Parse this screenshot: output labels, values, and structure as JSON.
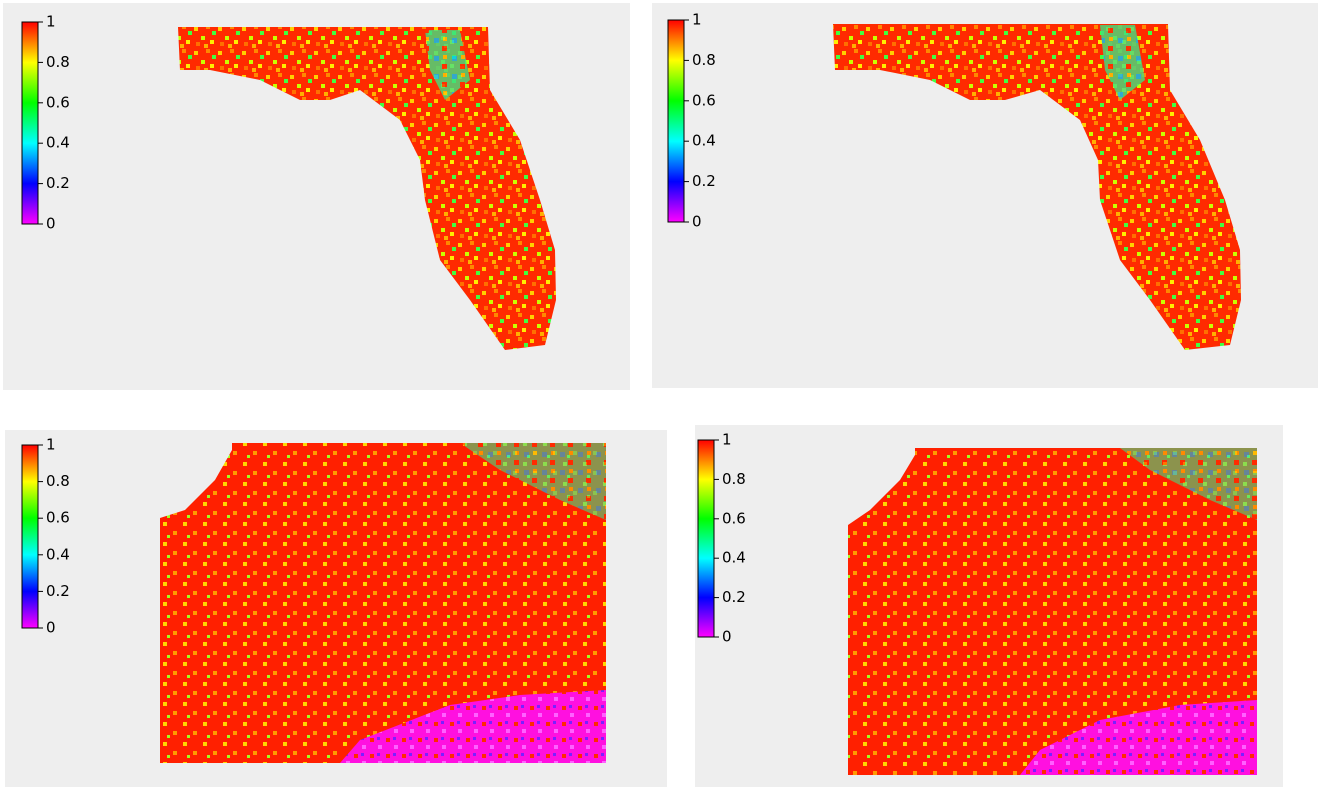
{
  "chart_data": [
    {
      "type": "heatmap",
      "clim": [
        0,
        1
      ],
      "cticks": [
        0,
        0.2,
        0.4,
        0.6,
        0.8,
        1
      ],
      "colormap": [
        "#ff00ff",
        "#0000ff",
        "#00ffff",
        "#00ff00",
        "#ffff00",
        "#ff0000"
      ]
    },
    {
      "type": "heatmap",
      "clim": [
        0,
        1
      ],
      "cticks": [
        0,
        0.2,
        0.4,
        0.6,
        0.8,
        1
      ],
      "colormap": [
        "#ff00ff",
        "#0000ff",
        "#00ffff",
        "#00ff00",
        "#ffff00",
        "#ff0000"
      ]
    },
    {
      "type": "heatmap",
      "clim": [
        0,
        1
      ],
      "cticks": [
        0,
        0.2,
        0.4,
        0.6,
        0.8,
        1
      ],
      "colormap": [
        "#ff00ff",
        "#0000ff",
        "#00ffff",
        "#00ff00",
        "#ffff00",
        "#ff0000"
      ]
    },
    {
      "type": "heatmap",
      "clim": [
        0,
        1
      ],
      "cticks": [
        0,
        0.2,
        0.4,
        0.6,
        0.8,
        1
      ],
      "colormap": [
        "#ff00ff",
        "#0000ff",
        "#00ffff",
        "#00ff00",
        "#ffff00",
        "#ff0000"
      ]
    }
  ]
}
